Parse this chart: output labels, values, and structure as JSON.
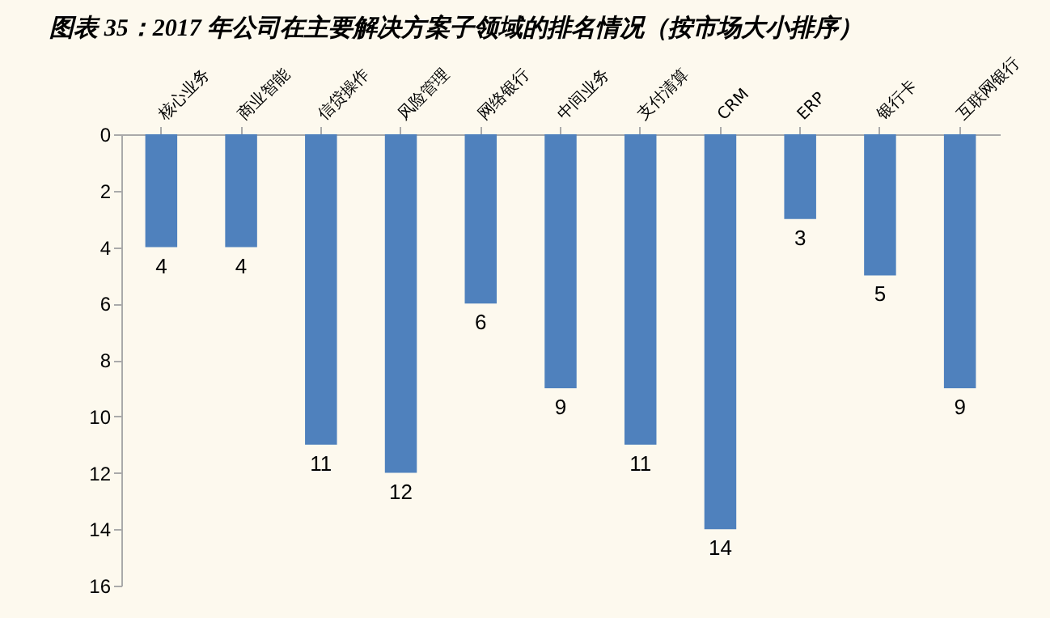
{
  "chart_data": {
    "type": "bar",
    "title": "图表 35：2017 年公司在主要解决方案子领域的排名情况（按市场大小排序）",
    "categories": [
      "核心业务",
      "商业智能",
      "信贷操作",
      "风险管理",
      "网络银行",
      "中间业务",
      "支付清算",
      "CRM",
      "ERP",
      "银行卡",
      "互联网银行"
    ],
    "values": [
      4,
      4,
      11,
      12,
      6,
      9,
      11,
      14,
      3,
      5,
      9
    ],
    "color": "#4f81bd",
    "ylim": [
      16,
      0
    ],
    "yticks": [
      0,
      2,
      4,
      6,
      8,
      10,
      12,
      14,
      16
    ],
    "grid": false,
    "data_labels": true
  }
}
